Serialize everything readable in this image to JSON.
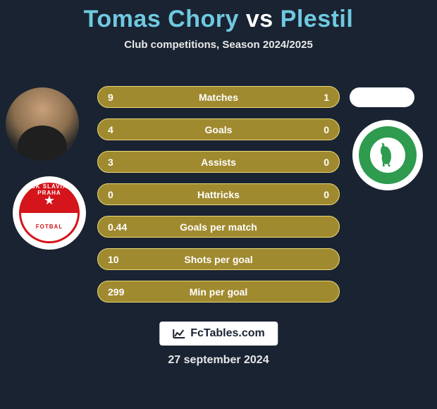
{
  "title": {
    "left_name": "Tomas Chory",
    "vs": "vs",
    "right_name": "Plestil",
    "left_color": "#6fc9e0",
    "vs_color": "#ffffff",
    "right_color": "#6fc9e0",
    "fontsize": 34
  },
  "subtitle": "Club competitions, Season 2024/2025",
  "players": {
    "left_club": "SK Slavia Praha",
    "right_club": "Bohemians Praha"
  },
  "stats": {
    "bar_color": "#a08a2f",
    "bar_border_color": "#e8d978",
    "text_color": "#ffffff",
    "rows": [
      {
        "label": "Matches",
        "left": "9",
        "right": "1"
      },
      {
        "label": "Goals",
        "left": "4",
        "right": "0"
      },
      {
        "label": "Assists",
        "left": "3",
        "right": "0"
      },
      {
        "label": "Hattricks",
        "left": "0",
        "right": "0"
      },
      {
        "label": "Goals per match",
        "left": "0.44",
        "right": null
      },
      {
        "label": "Shots per goal",
        "left": "10",
        "right": null
      },
      {
        "label": "Min per goal",
        "left": "299",
        "right": null
      }
    ]
  },
  "badge": {
    "text": "FcTables.com"
  },
  "date": "27 september 2024",
  "colors": {
    "background": "#1a2332",
    "slavia_red": "#d4151b",
    "bohemians_green": "#2e9b4f"
  }
}
